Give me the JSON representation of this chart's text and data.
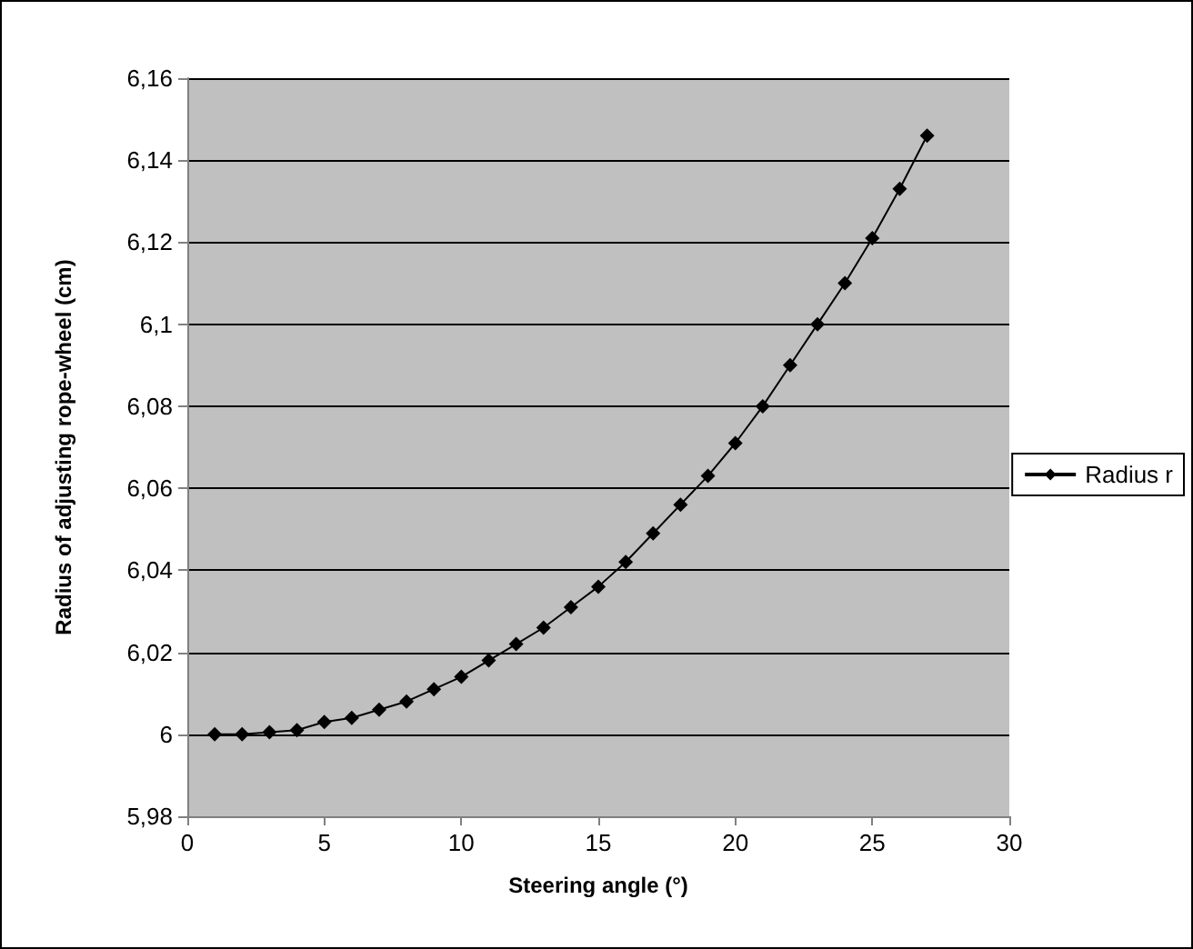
{
  "chart_data": {
    "type": "line",
    "xlabel": "Steering angle (°)",
    "ylabel": "Radius of adjusting rope-wheel (cm)",
    "x": [
      1,
      2,
      3,
      4,
      5,
      6,
      7,
      8,
      9,
      10,
      11,
      12,
      13,
      14,
      15,
      16,
      17,
      18,
      19,
      20,
      21,
      22,
      23,
      24,
      25,
      26,
      27
    ],
    "series": [
      {
        "name": "Radius r",
        "color": "#000000",
        "values": [
          6.0,
          6.0,
          6.0005,
          6.001,
          6.003,
          6.004,
          6.006,
          6.008,
          6.011,
          6.014,
          6.018,
          6.022,
          6.026,
          6.031,
          6.036,
          6.042,
          6.049,
          6.056,
          6.063,
          6.071,
          6.08,
          6.09,
          6.1,
          6.11,
          6.121,
          6.133,
          6.146
        ]
      }
    ],
    "xlim": [
      0,
      30
    ],
    "xticks": [
      0,
      5,
      10,
      15,
      20,
      25,
      30
    ],
    "ylim": [
      5.98,
      6.16
    ],
    "yticks": [
      {
        "value": 5.98,
        "label": "5,98"
      },
      {
        "value": 6,
        "label": "6"
      },
      {
        "value": 6.02,
        "label": "6,02"
      },
      {
        "value": 6.04,
        "label": "6,04"
      },
      {
        "value": 6.06,
        "label": "6,06"
      },
      {
        "value": 6.08,
        "label": "6,08"
      },
      {
        "value": 6.1,
        "label": "6,1"
      },
      {
        "value": 6.12,
        "label": "6,12"
      },
      {
        "value": 6.14,
        "label": "6,14"
      },
      {
        "value": 6.16,
        "label": "6,16"
      }
    ],
    "grid": "y",
    "legend": "right",
    "marker": "diamond",
    "line_style": "solid"
  }
}
